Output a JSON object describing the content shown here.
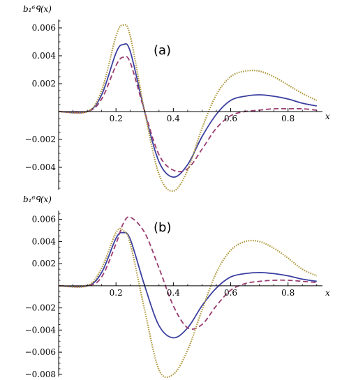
{
  "chart_data": [
    {
      "type": "line",
      "panel_label": "(a)",
      "ylabel": "b₁⁶ᑫ(x)",
      "xlabel": "x",
      "xlim": [
        0,
        0.92
      ],
      "ylim": [
        -0.0056,
        0.0066
      ],
      "xticks": [
        0.2,
        0.4,
        0.6,
        0.8
      ],
      "xtick_labels": [
        "0.2",
        "0.4",
        "0.6",
        "0.8"
      ],
      "yticks": [
        -0.004,
        -0.002,
        0.002,
        0.004,
        0.006
      ],
      "ytick_labels": [
        "−0.004",
        "−0.002",
        "0.002",
        "0.004",
        "0.006"
      ],
      "grid": false,
      "x": [
        0.1,
        0.15,
        0.2,
        0.225,
        0.25,
        0.3,
        0.35,
        0.4,
        0.45,
        0.5,
        0.55,
        0.6,
        0.65,
        0.7,
        0.75,
        0.8,
        0.85,
        0.9
      ],
      "series": [
        {
          "color": "#3b3fa0",
          "dash": "solid",
          "values": [
            0.0,
            0.0012,
            0.0042,
            0.0048,
            0.0043,
            0.0,
            -0.0036,
            -0.0047,
            -0.0038,
            -0.0018,
            -0.0002,
            0.0008,
            0.0011,
            0.0012,
            0.0011,
            0.0009,
            0.0006,
            0.0004
          ]
        },
        {
          "color": "#9a3b70",
          "dash": "dashed",
          "values": [
            0.0,
            0.0009,
            0.0033,
            0.0039,
            0.0035,
            0.0,
            -0.0031,
            -0.0042,
            -0.0041,
            -0.0027,
            -0.0012,
            -0.0003,
            0.0,
            0.0001,
            0.0002,
            0.0002,
            0.0002,
            0.0001
          ]
        },
        {
          "color": "#b09a40",
          "dash": "dotted",
          "values": [
            0.0,
            0.0015,
            0.0054,
            0.0062,
            0.0054,
            0.0,
            -0.0045,
            -0.0057,
            -0.0042,
            -0.0012,
            0.0012,
            0.0025,
            0.0029,
            0.0029,
            0.0025,
            0.0019,
            0.0013,
            0.0008
          ]
        }
      ]
    },
    {
      "type": "line",
      "panel_label": "(b)",
      "ylabel": "b₁⁶ᑫ(x)",
      "xlabel": "x",
      "xlim": [
        0,
        0.92
      ],
      "ylim": [
        -0.0082,
        0.0068
      ],
      "xticks": [
        0.2,
        0.4,
        0.6,
        0.8
      ],
      "xtick_labels": [
        "0.2",
        "0.4",
        "0.6",
        "0.8"
      ],
      "yticks": [
        -0.008,
        -0.006,
        -0.004,
        -0.002,
        0.002,
        0.004,
        0.006
      ],
      "ytick_labels": [
        "−0.008",
        "−0.006",
        "−0.004",
        "−0.002",
        "0.002",
        "0.004",
        "0.006"
      ],
      "grid": false,
      "x": [
        0.1,
        0.15,
        0.2,
        0.225,
        0.25,
        0.3,
        0.35,
        0.4,
        0.45,
        0.5,
        0.55,
        0.6,
        0.65,
        0.7,
        0.75,
        0.8,
        0.85,
        0.9
      ],
      "series": [
        {
          "color": "#3b3fa0",
          "dash": "solid",
          "values": [
            0.0,
            0.0012,
            0.0043,
            0.0048,
            0.0042,
            0.0,
            -0.0036,
            -0.0047,
            -0.0038,
            -0.0018,
            -0.0002,
            0.0008,
            0.0011,
            0.0012,
            0.0011,
            0.0009,
            0.0006,
            0.0004
          ]
        },
        {
          "color": "#9a3b70",
          "dash": "dashed",
          "values": [
            0.0,
            0.0008,
            0.0038,
            0.0056,
            0.0062,
            0.0048,
            0.0016,
            -0.0018,
            -0.0038,
            -0.0035,
            -0.0018,
            -0.0004,
            0.0002,
            0.0004,
            0.0005,
            0.0005,
            0.0004,
            0.0003
          ]
        },
        {
          "color": "#b09a40",
          "dash": "dotted",
          "values": [
            0.0,
            0.0016,
            0.0048,
            0.005,
            0.0038,
            -0.0022,
            -0.0076,
            -0.008,
            -0.0058,
            -0.0022,
            0.0012,
            0.0032,
            0.004,
            0.004,
            0.0034,
            0.0025,
            0.0015,
            0.0009
          ]
        }
      ]
    }
  ]
}
